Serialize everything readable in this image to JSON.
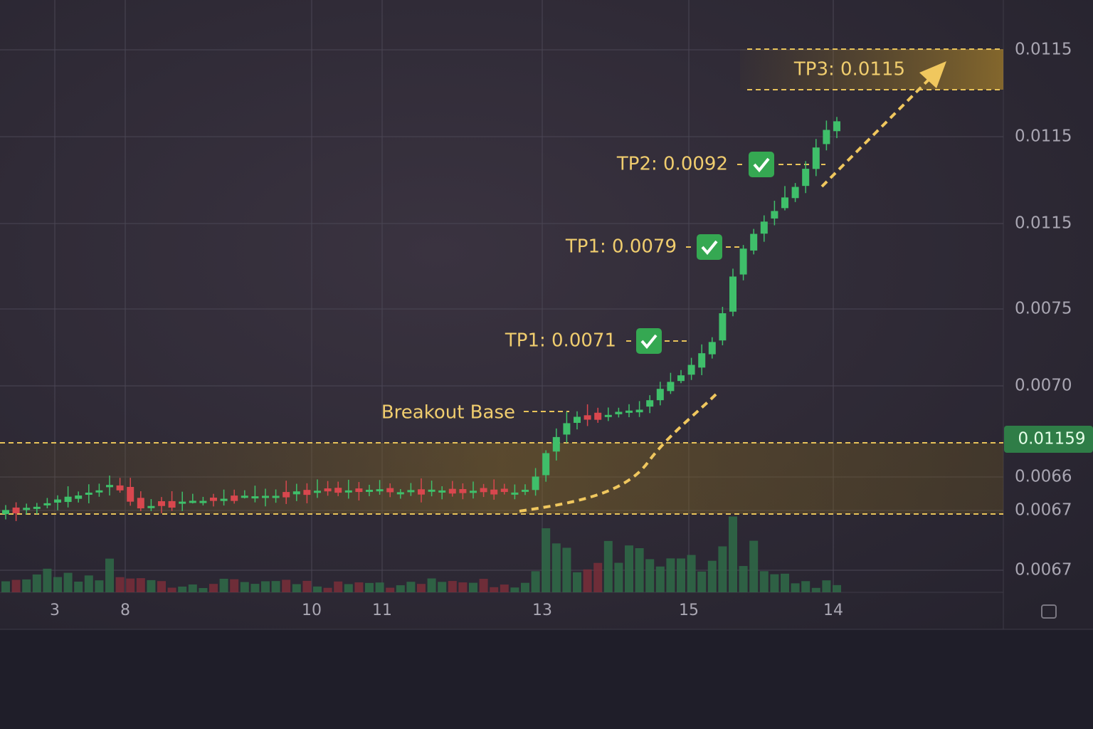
{
  "price_axis": [
    "0.0115",
    "0.0115",
    "0.0115",
    "0.0075",
    "0.0070",
    "0.0066",
    "0.0067",
    "0.0067"
  ],
  "current_price": "0.01159",
  "time_axis": [
    "3",
    "8",
    "10",
    "11",
    "13",
    "15",
    "14"
  ],
  "annotations": {
    "tp3": "TP3: 0.0115",
    "tp2": "TP2: 0.0092",
    "tp1_upper": "TP1: 0.0079",
    "tp1_lower": "TP1: 0.0071",
    "base": "Breakout Base"
  }
}
